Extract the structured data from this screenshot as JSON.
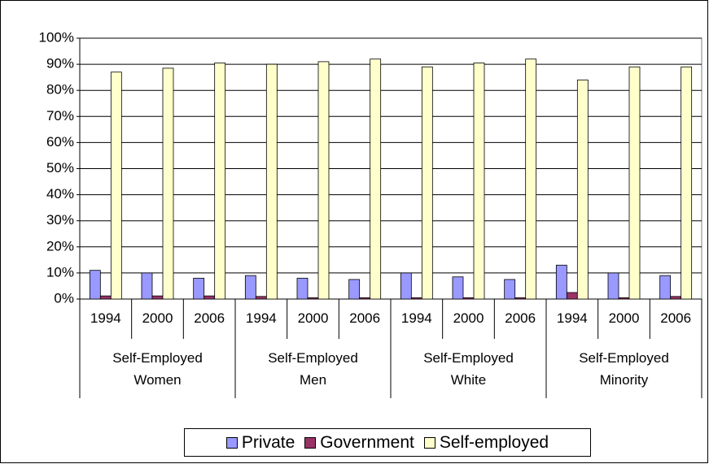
{
  "chart_data": {
    "type": "bar",
    "categories": [
      "1994",
      "2000",
      "2006",
      "1994",
      "2000",
      "2006",
      "1994",
      "2000",
      "2006",
      "1994",
      "2000",
      "2006"
    ],
    "category_groups": [
      "Self-Employed Women",
      "Self-Employed Men",
      "Self-Employed White",
      "Self-Employed Minority"
    ],
    "series": [
      {
        "name": "Private",
        "color": "#9999ff",
        "values": [
          11,
          10,
          8,
          9,
          8,
          7.5,
          10,
          8.5,
          7.5,
          13,
          10,
          9
        ]
      },
      {
        "name": "Government",
        "color": "#993366",
        "values": [
          1.2,
          1.2,
          1.2,
          1,
          0.5,
          0.5,
          0.5,
          0.5,
          0.5,
          2.5,
          0.5,
          1
        ]
      },
      {
        "name": "Self-employed",
        "color": "#ffffcc",
        "values": [
          87,
          88.5,
          90.5,
          90,
          91,
          92,
          89,
          90.5,
          92,
          84,
          89,
          89
        ]
      }
    ],
    "ylim": [
      0,
      100
    ],
    "yticks": [
      {
        "value": 0,
        "label": "0%"
      },
      {
        "value": 10,
        "label": "10%"
      },
      {
        "value": 20,
        "label": "20%"
      },
      {
        "value": 30,
        "label": "30%"
      },
      {
        "value": 40,
        "label": "40%"
      },
      {
        "value": 50,
        "label": "50%"
      },
      {
        "value": 60,
        "label": "60%"
      },
      {
        "value": 70,
        "label": "70%"
      },
      {
        "value": 80,
        "label": "80%"
      },
      {
        "value": 90,
        "label": "90%"
      },
      {
        "value": 100,
        "label": "100%"
      }
    ],
    "grid": true,
    "legend": "bottom"
  }
}
